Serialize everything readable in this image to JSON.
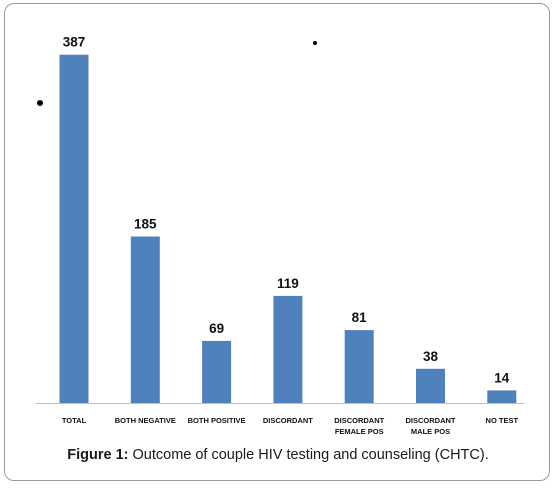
{
  "chart_data": {
    "type": "bar",
    "categories": [
      "TOTAL",
      "BOTH NEGATIVE",
      "BOTH POSITIVE",
      "DISCORDANT",
      "DISCORDANT FEMALE POS",
      "DISCORDANT MALE POS",
      "NO TEST"
    ],
    "category_lines": [
      [
        "TOTAL"
      ],
      [
        "BOTH NEGATIVE"
      ],
      [
        "BOTH POSITIVE"
      ],
      [
        "DISCORDANT"
      ],
      [
        "DISCORDANT",
        "FEMALE POS"
      ],
      [
        "DISCORDANT",
        "MALE POS"
      ],
      [
        "NO TEST"
      ]
    ],
    "values": [
      387,
      185,
      69,
      119,
      81,
      38,
      14
    ],
    "ylim": [
      0,
      400
    ],
    "bar_color": "#4f81bd",
    "grid": false,
    "legend": "none"
  },
  "caption": {
    "label": "Figure 1:",
    "text": " Outcome of couple HIV testing and counseling (CHTC)."
  }
}
